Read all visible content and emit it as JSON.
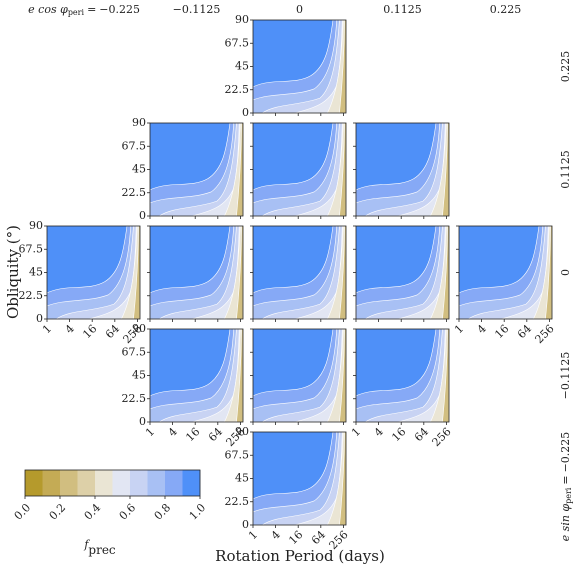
{
  "chart_data": {
    "type": "contour",
    "column_variable": {
      "symbol": "e cos φ",
      "subscript": "peri",
      "relation": "="
    },
    "columns": [
      "−0.225",
      "−0.1125",
      "0",
      "0.1125",
      "0.225"
    ],
    "row_variable": {
      "symbol": "e sin φ",
      "subscript": "peri",
      "relation": "="
    },
    "rows": [
      "0.225",
      "0.1125",
      "0",
      "−0.1125",
      "−0.225"
    ],
    "xlabel": "Rotation Period (days)",
    "ylabel": "Obliquity (°)",
    "xscale": "log",
    "xlim": [
      1,
      300
    ],
    "xticks": [
      1,
      4,
      16,
      64,
      256
    ],
    "ylim": [
      0,
      90
    ],
    "yticks": [
      0,
      22.5,
      45,
      67.5,
      90
    ],
    "colorbar": {
      "label": {
        "symbol": "f",
        "subscript": "prec"
      },
      "lim": [
        0,
        1
      ],
      "ticks": [
        {
          "value": 0,
          "label": "0.0"
        },
        {
          "value": 0.2,
          "label": "0.2"
        },
        {
          "value": 0.4,
          "label": "0.4"
        },
        {
          "value": 0.6,
          "label": "0.6"
        },
        {
          "value": 0.8,
          "label": "0.8"
        },
        {
          "value": 1,
          "label": "1.0"
        }
      ],
      "colors": [
        "#b59a2c",
        "#c4ab55",
        "#d1be80",
        "#ddd0a8",
        "#eae5d4",
        "#e2e6f3",
        "#c8d3f3",
        "#a8c0f4",
        "#86a9f6",
        "#4f90f8"
      ]
    }
  }
}
